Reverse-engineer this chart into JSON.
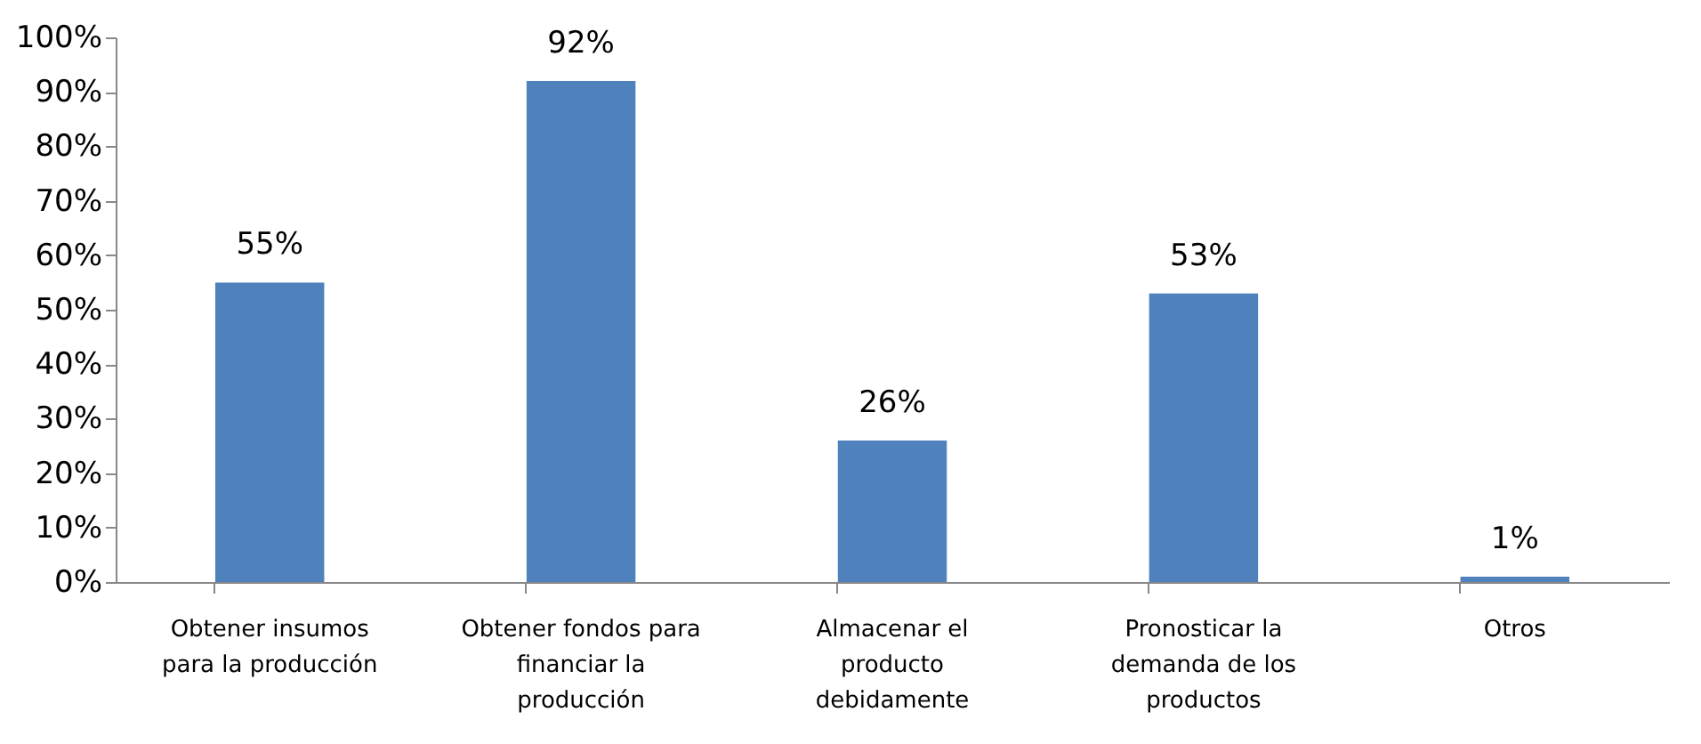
{
  "chart_data": {
    "type": "bar",
    "categories": [
      "Obtener insumos para la producción",
      "Obtener fondos para financiar la producción",
      "Almacenar el producto debidamente",
      "Pronosticar la demanda de los productos",
      "Otros"
    ],
    "values": [
      55,
      92,
      26,
      53,
      1
    ],
    "value_labels": [
      "55%",
      "92%",
      "26%",
      "53%",
      "1%"
    ],
    "color": "#4f81bd",
    "ylim": [
      0,
      100
    ],
    "yticks": [
      {
        "value": 0,
        "label": "0%"
      },
      {
        "value": 10,
        "label": "10%"
      },
      {
        "value": 20,
        "label": "20%"
      },
      {
        "value": 30,
        "label": "30%"
      },
      {
        "value": 40,
        "label": "40%"
      },
      {
        "value": 50,
        "label": "50%"
      },
      {
        "value": 60,
        "label": "60%"
      },
      {
        "value": 70,
        "label": "70%"
      },
      {
        "value": 80,
        "label": "80%"
      },
      {
        "value": 90,
        "label": "90%"
      },
      {
        "value": 100,
        "label": "100%"
      }
    ],
    "grid": false
  }
}
